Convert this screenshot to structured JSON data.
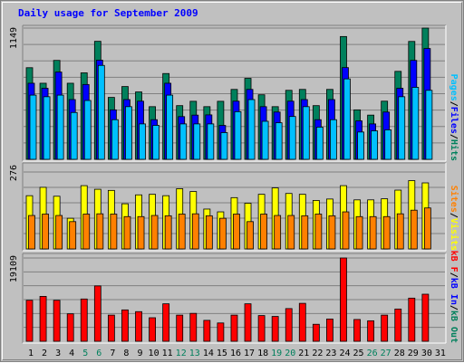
{
  "title": "Daily usage for September 2009",
  "colors": {
    "background": "#c0c0c0",
    "plot_background": "#c0c0c0",
    "hits": "#00805c",
    "files": "#0000ff",
    "pages": "#00c0ff",
    "visits": "#ffff00",
    "sites": "#ff8000",
    "kbytes": "#ff0000",
    "title": "#0000ff",
    "weekend_day": "#00805c",
    "weekday": "#000000"
  },
  "chart_data": [
    {
      "type": "bar",
      "panel": "hits-files-pages",
      "ymax_label": "1149",
      "legend": [
        {
          "name": "Pages",
          "color": "#00c0ff"
        },
        {
          "name": "/",
          "color": "#000000"
        },
        {
          "name": "Files",
          "color": "#0000ff"
        },
        {
          "name": "/",
          "color": "#000000"
        },
        {
          "name": "Hits",
          "color": "#00805c"
        }
      ],
      "categories": [
        "1",
        "2",
        "3",
        "4",
        "5",
        "6",
        "7",
        "8",
        "9",
        "10",
        "11",
        "12",
        "13",
        "14",
        "15",
        "16",
        "17",
        "18",
        "19",
        "20",
        "21",
        "22",
        "23",
        "24",
        "25",
        "26",
        "27",
        "28",
        "29",
        "30",
        "31"
      ],
      "ylim": [
        0,
        1149
      ],
      "series": [
        {
          "name": "Hits",
          "color": "#00805c",
          "values": [
            802,
            666,
            866,
            666,
            757,
            1033,
            542,
            637,
            590,
            461,
            751,
            470,
            508,
            461,
            508,
            612,
            709,
            565,
            461,
            604,
            612,
            470,
            612,
            1075,
            433,
            387,
            509,
            770,
            1032,
            1149,
            0
          ]
        },
        {
          "name": "Files",
          "color": "#0000ff",
          "values": [
            666,
            622,
            764,
            523,
            655,
            868,
            433,
            523,
            509,
            347,
            666,
            374,
            387,
            389,
            297,
            509,
            612,
            461,
            414,
            509,
            523,
            347,
            523,
            803,
            337,
            310,
            414,
            622,
            866,
            970,
            0
          ]
        },
        {
          "name": "Pages",
          "color": "#00c0ff",
          "values": [
            562,
            548,
            562,
            410,
            515,
            822,
            347,
            461,
            310,
            297,
            562,
            310,
            310,
            310,
            234,
            417,
            523,
            333,
            320,
            375,
            461,
            282,
            347,
            704,
            239,
            249,
            258,
            548,
            630,
            604,
            0
          ]
        }
      ]
    },
    {
      "type": "bar",
      "panel": "visits-sites",
      "ymax_label": "276",
      "legend": [
        {
          "name": "Sites",
          "color": "#ff8000"
        },
        {
          "name": "/",
          "color": "#000000"
        },
        {
          "name": "Visits",
          "color": "#ffff00"
        }
      ],
      "categories": [
        "1",
        "2",
        "3",
        "4",
        "5",
        "6",
        "7",
        "8",
        "9",
        "10",
        "11",
        "12",
        "13",
        "14",
        "15",
        "16",
        "17",
        "18",
        "19",
        "20",
        "21",
        "22",
        "23",
        "24",
        "25",
        "26",
        "27",
        "28",
        "29",
        "30",
        "31"
      ],
      "ylim": [
        0,
        276
      ],
      "series": [
        {
          "name": "Visits",
          "color": "#ffff00",
          "values": [
            191,
            221,
            189,
            110,
            227,
            214,
            210,
            162,
            194,
            196,
            191,
            216,
            206,
            143,
            133,
            184,
            164,
            196,
            219,
            199,
            196,
            174,
            179,
            227,
            176,
            176,
            180,
            211,
            245,
            237,
            0
          ]
        },
        {
          "name": "Sites",
          "color": "#ff8000",
          "values": [
            120,
            125,
            120,
            98,
            125,
            126,
            125,
            116,
            116,
            120,
            119,
            125,
            126,
            119,
            110,
            125,
            98,
            125,
            120,
            120,
            119,
            125,
            119,
            133,
            116,
            116,
            116,
            126,
            139,
            147,
            0
          ]
        }
      ]
    },
    {
      "type": "bar",
      "panel": "kbytes",
      "ymax_label": "19109",
      "legend": [
        {
          "name": "kB F",
          "color": "#ff0000"
        },
        {
          "name": "/",
          "color": "#000000"
        },
        {
          "name": "kB In",
          "color": "#0000ff"
        },
        {
          "name": "/",
          "color": "#000000"
        },
        {
          "name": "kB Out",
          "color": "#00805c"
        }
      ],
      "categories": [
        "1",
        "2",
        "3",
        "4",
        "5",
        "6",
        "7",
        "8",
        "9",
        "10",
        "11",
        "12",
        "13",
        "14",
        "15",
        "16",
        "17",
        "18",
        "19",
        "20",
        "21",
        "22",
        "23",
        "24",
        "25",
        "26",
        "27",
        "28",
        "29",
        "30",
        "31"
      ],
      "ylim": [
        0,
        19109
      ],
      "series": [
        {
          "name": "kB F",
          "color": "#ff0000",
          "values": [
            9400,
            10300,
            9400,
            6300,
            9700,
            12700,
            6000,
            7200,
            6800,
            5400,
            8600,
            6000,
            6400,
            4800,
            4200,
            6000,
            8600,
            5900,
            5700,
            7500,
            8700,
            3900,
            5100,
            19109,
            5000,
            4700,
            6000,
            7400,
            9900,
            10800,
            0
          ]
        }
      ]
    }
  ],
  "days": [
    {
      "label": "1",
      "weekend": false
    },
    {
      "label": "2",
      "weekend": false
    },
    {
      "label": "3",
      "weekend": false
    },
    {
      "label": "4",
      "weekend": false
    },
    {
      "label": "5",
      "weekend": true
    },
    {
      "label": "6",
      "weekend": true
    },
    {
      "label": "7",
      "weekend": false
    },
    {
      "label": "8",
      "weekend": false
    },
    {
      "label": "9",
      "weekend": false
    },
    {
      "label": "10",
      "weekend": false
    },
    {
      "label": "11",
      "weekend": false
    },
    {
      "label": "12",
      "weekend": true
    },
    {
      "label": "13",
      "weekend": true
    },
    {
      "label": "14",
      "weekend": false
    },
    {
      "label": "15",
      "weekend": false
    },
    {
      "label": "16",
      "weekend": false
    },
    {
      "label": "17",
      "weekend": false
    },
    {
      "label": "18",
      "weekend": false
    },
    {
      "label": "19",
      "weekend": true
    },
    {
      "label": "20",
      "weekend": true
    },
    {
      "label": "21",
      "weekend": false
    },
    {
      "label": "22",
      "weekend": false
    },
    {
      "label": "23",
      "weekend": false
    },
    {
      "label": "24",
      "weekend": false
    },
    {
      "label": "25",
      "weekend": false
    },
    {
      "label": "26",
      "weekend": true
    },
    {
      "label": "27",
      "weekend": true
    },
    {
      "label": "28",
      "weekend": false
    },
    {
      "label": "29",
      "weekend": false
    },
    {
      "label": "30",
      "weekend": false
    },
    {
      "label": "31",
      "weekend": false
    }
  ]
}
